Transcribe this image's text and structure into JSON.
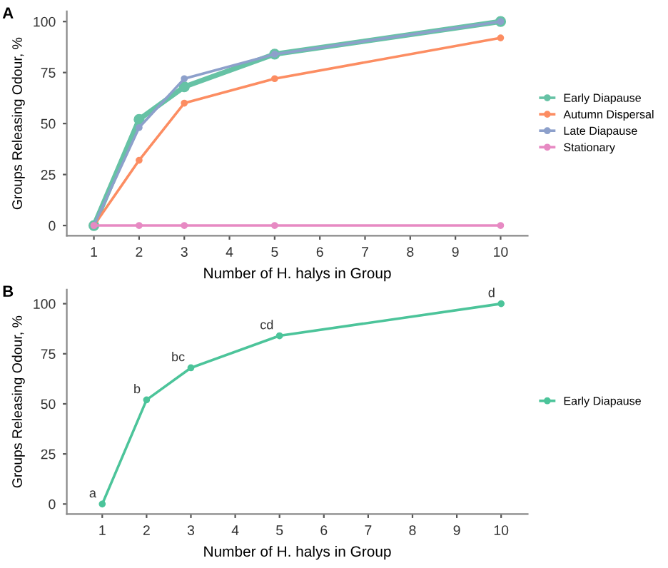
{
  "chart_data": [
    {
      "type": "line",
      "xlabel": "Number of H. halys in Group",
      "ylabel": "Groups Releasing Odour, %",
      "x": [
        1,
        2,
        3,
        5,
        10
      ],
      "xlim": [
        0.4,
        10.6
      ],
      "xticks": [
        1,
        2,
        3,
        4,
        5,
        6,
        7,
        8,
        9,
        10
      ],
      "ylim": [
        -5,
        105
      ],
      "yticks": [
        0,
        25,
        50,
        75,
        100
      ],
      "grid": false,
      "legend": "right",
      "marker": "circle",
      "line_style": "solid",
      "annotations": [
        "A"
      ],
      "series": [
        {
          "name": "Early Diapause",
          "color": "#66c2a5",
          "values": [
            0,
            52,
            68,
            84,
            100
          ]
        },
        {
          "name": "Autumn Dispersal",
          "color": "#fc8d62",
          "values": [
            0,
            32,
            60,
            72,
            92
          ]
        },
        {
          "name": "Late Diapause",
          "color": "#8da0cb",
          "values": [
            0,
            48,
            72,
            84,
            100
          ]
        },
        {
          "name": "Stationary",
          "color": "#e78ac3",
          "values": [
            0,
            0,
            0,
            0,
            0
          ]
        }
      ]
    },
    {
      "type": "line",
      "xlabel": "Number of H. halys in Group",
      "ylabel": "Groups Releasing Odour, %",
      "x": [
        1,
        2,
        3,
        5,
        10
      ],
      "xlim": [
        0.2,
        10.6
      ],
      "xticks": [
        1,
        2,
        3,
        4,
        5,
        6,
        7,
        8,
        9,
        10
      ],
      "ylim": [
        -5,
        107
      ],
      "yticks": [
        0,
        25,
        50,
        75,
        100
      ],
      "grid": false,
      "legend": "right",
      "marker": "circle",
      "line_style": "solid",
      "annotations": [
        "B",
        {
          "text": "a",
          "x": 1,
          "y": 0
        },
        {
          "text": "b",
          "x": 2,
          "y": 52
        },
        {
          "text": "bc",
          "x": 3,
          "y": 68
        },
        {
          "text": "cd",
          "x": 5,
          "y": 84
        },
        {
          "text": "d",
          "x": 10,
          "y": 100
        }
      ],
      "series": [
        {
          "name": "Early Diapause",
          "color": "#4cc49a",
          "values": [
            0,
            52,
            68,
            84,
            100
          ]
        }
      ]
    }
  ]
}
